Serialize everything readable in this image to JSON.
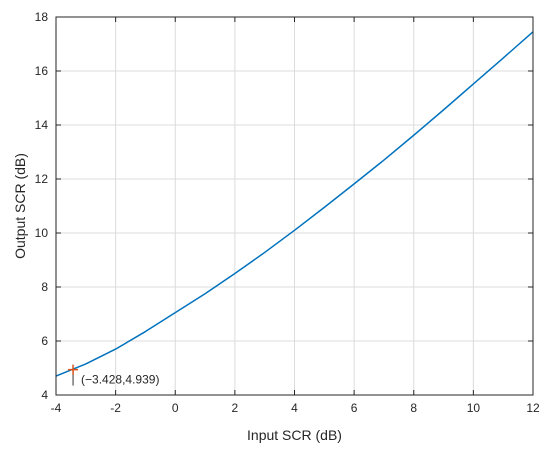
{
  "chart_data": {
    "type": "line",
    "title": "",
    "xlabel": "Input SCR (dB)",
    "ylabel": "Output SCR (dB)",
    "xlim": [
      -4,
      12
    ],
    "ylim": [
      4,
      18
    ],
    "xticks": [
      -4,
      -2,
      0,
      2,
      4,
      6,
      8,
      10,
      12
    ],
    "yticks": [
      4,
      6,
      8,
      10,
      12,
      14,
      16,
      18
    ],
    "xtick_labels": [
      "-4",
      "-2",
      "0",
      "2",
      "4",
      "6",
      "8",
      "10",
      "12"
    ],
    "ytick_labels": [
      "4",
      "6",
      "8",
      "10",
      "12",
      "14",
      "16",
      "18"
    ],
    "grid": true,
    "colors": {
      "line": "#0072BD",
      "marker": "#D95319",
      "grid": "#dcdcdc",
      "axis": "#262626"
    },
    "series": [
      {
        "x": [
          -4,
          -3,
          -2,
          -1,
          0,
          1,
          2,
          3,
          4,
          5,
          6,
          7,
          8,
          9,
          10,
          11,
          12
        ],
        "y": [
          4.7,
          5.15,
          5.7,
          6.35,
          7.05,
          7.75,
          8.5,
          9.28,
          10.1,
          10.95,
          11.82,
          12.7,
          13.62,
          14.56,
          15.52,
          16.48,
          17.45
        ]
      }
    ],
    "annotations": [
      {
        "x": -3.428,
        "y": 4.939,
        "text": "(−3.428,4.939)",
        "marker": "plus"
      }
    ]
  }
}
